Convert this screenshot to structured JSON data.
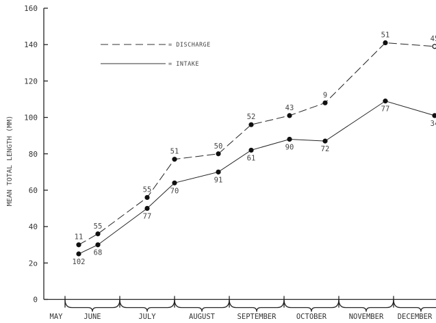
{
  "chart_data": {
    "type": "line",
    "ylabel": "MEAN TOTAL LENGTH (MM)",
    "xlabel": "",
    "ylim": [
      0,
      160
    ],
    "yticks": [
      0,
      20,
      40,
      60,
      80,
      100,
      120,
      140,
      160
    ],
    "ytick_labels": [
      "0",
      "2o",
      "40",
      "60",
      "80",
      "100",
      "120",
      "140",
      "160"
    ],
    "months": [
      "MAY",
      "JUNE",
      "JULY",
      "AUGUST",
      "SEPTEMBER",
      "OCTOBER",
      "NOVEMBER",
      "DECEMBER"
    ],
    "legend": {
      "placement": "top-left",
      "discharge_label": "= DISCHARGE",
      "intake_label": "= INTAKE"
    },
    "series": [
      {
        "name": "DISCHARGE",
        "style": "dashed",
        "points": [
          {
            "x": 0.25,
            "y": 30,
            "label": "11"
          },
          {
            "x": 0.6,
            "y": 36,
            "label": "55"
          },
          {
            "x": 1.5,
            "y": 56,
            "label": "55"
          },
          {
            "x": 2.0,
            "y": 77,
            "label": "51"
          },
          {
            "x": 2.8,
            "y": 80,
            "label": "50"
          },
          {
            "x": 3.4,
            "y": 96,
            "label": "52"
          },
          {
            "x": 4.1,
            "y": 101,
            "label": "43"
          },
          {
            "x": 4.75,
            "y": 108,
            "label": "9"
          },
          {
            "x": 5.85,
            "y": 141,
            "label": "51"
          },
          {
            "x": 6.75,
            "y": 139,
            "label": "45"
          }
        ]
      },
      {
        "name": "INTAKE",
        "style": "solid",
        "points": [
          {
            "x": 0.25,
            "y": 25,
            "label": "102"
          },
          {
            "x": 0.6,
            "y": 30,
            "label": "68"
          },
          {
            "x": 1.5,
            "y": 50,
            "label": "77"
          },
          {
            "x": 2.0,
            "y": 64,
            "label": "70"
          },
          {
            "x": 2.8,
            "y": 70,
            "label": "91"
          },
          {
            "x": 3.4,
            "y": 82,
            "label": "61"
          },
          {
            "x": 4.1,
            "y": 88,
            "label": "90"
          },
          {
            "x": 4.75,
            "y": 87,
            "label": "72"
          },
          {
            "x": 5.85,
            "y": 109,
            "label": "77"
          },
          {
            "x": 6.75,
            "y": 101,
            "label": "34"
          }
        ]
      }
    ]
  }
}
